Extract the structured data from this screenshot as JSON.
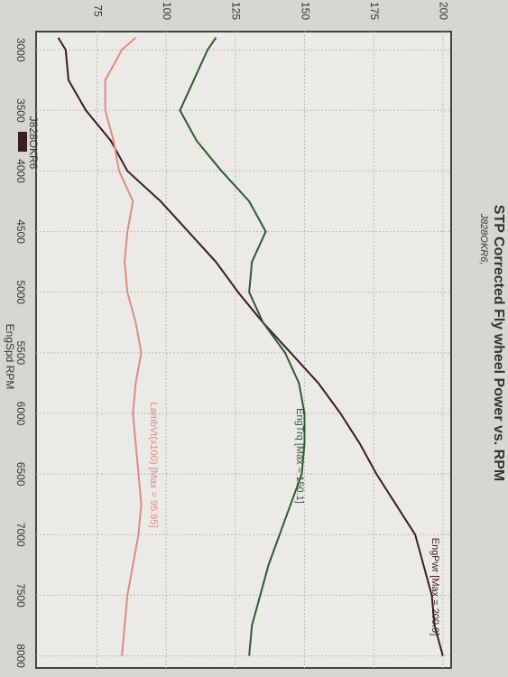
{
  "chart_data": {
    "type": "line",
    "title": "STP Corrected Fly wheel Power vs. RPM",
    "subtitle": "J828OKR6,",
    "legend": "J828OKR6",
    "xlabel": "EngSpd RPM",
    "x": [
      2900,
      3000,
      3250,
      3500,
      3750,
      4000,
      4250,
      4500,
      4750,
      5000,
      5250,
      5500,
      5750,
      6000,
      6250,
      6500,
      6750,
      7000,
      7250,
      7500,
      7750,
      8000
    ],
    "series": [
      {
        "name": "EngPwr [Max = 200.9]",
        "color": "#3a1e24",
        "values": [
          61,
          63.7,
          64.7,
          71,
          80,
          86,
          98,
          108,
          118,
          126,
          135,
          145,
          155,
          163,
          170,
          176,
          183,
          190,
          193,
          196,
          197,
          200
        ]
      },
      {
        "name": "EngTrq [Max = 150.1]",
        "color": "#2f5a32",
        "values": [
          118,
          115,
          110,
          105,
          111,
          120,
          130,
          136,
          131,
          130,
          135,
          143,
          148,
          150,
          150,
          149,
          145,
          141,
          137,
          134,
          131,
          130
        ]
      },
      {
        "name": "LambVt(x100) [Max = 95.95]",
        "color": "#e08a86",
        "values": [
          89,
          84,
          78,
          78,
          81,
          83,
          88,
          86,
          85,
          86,
          89,
          91,
          89,
          88,
          89,
          90,
          91,
          90,
          88,
          86,
          85,
          84
        ]
      }
    ],
    "xlim": [
      2850,
      8100
    ],
    "xticks": [
      3000,
      3500,
      4000,
      4500,
      5000,
      5500,
      6000,
      6500,
      7000,
      7500,
      8000
    ],
    "ylim": [
      53,
      203
    ],
    "yticks": [
      75,
      100,
      125,
      150,
      175,
      200
    ],
    "grid": true
  }
}
